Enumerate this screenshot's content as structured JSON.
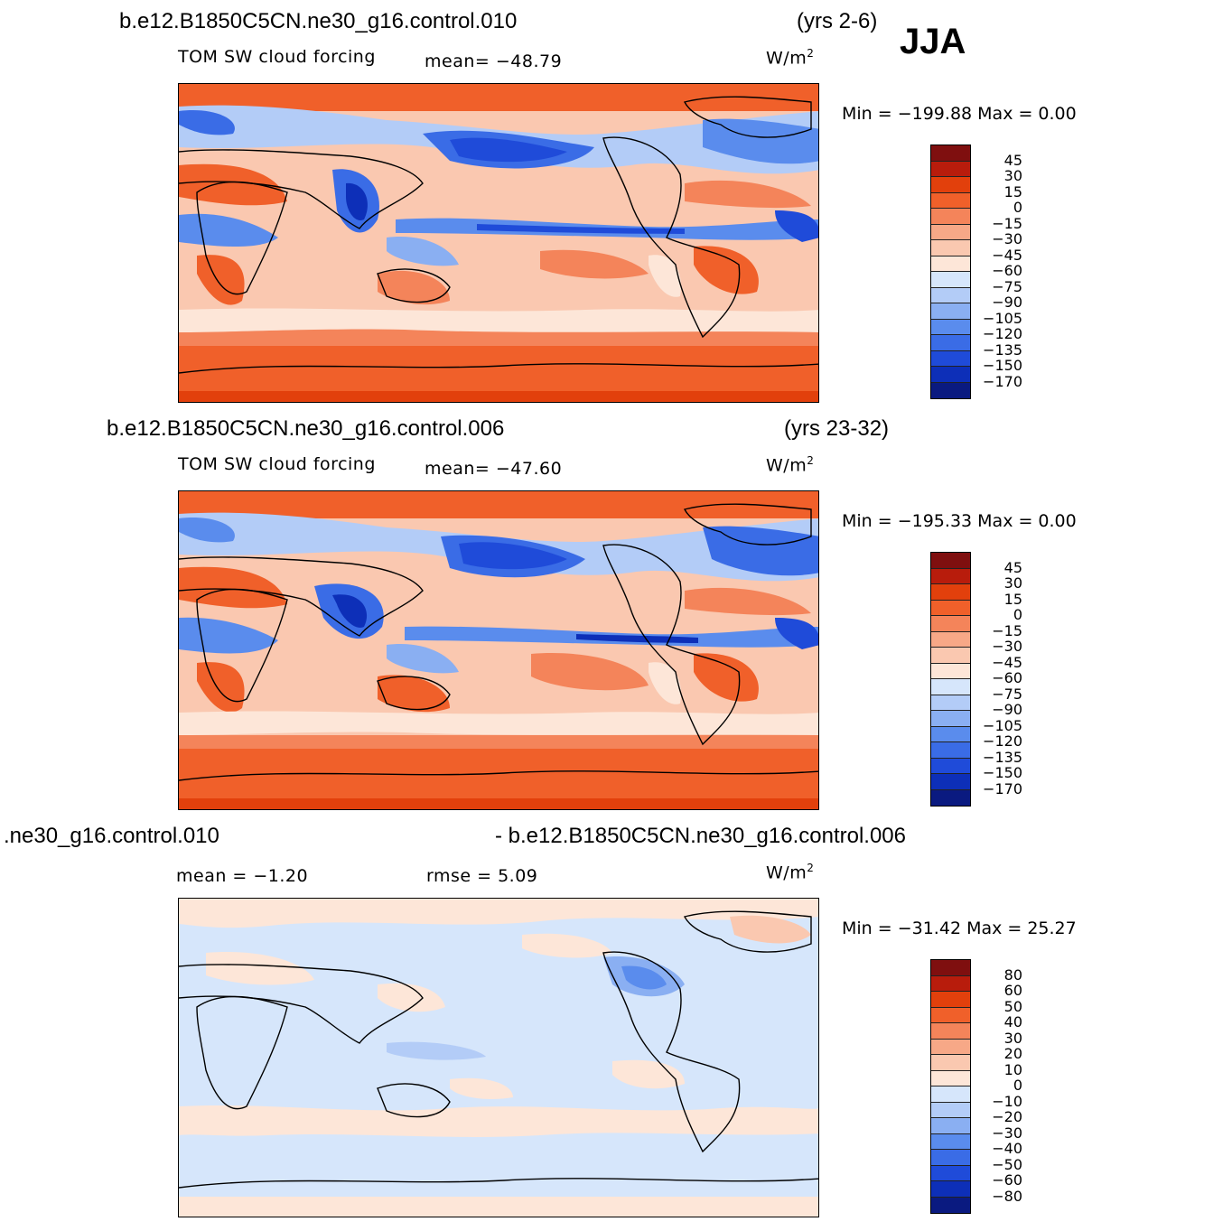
{
  "season": "JJA",
  "units_main": "W/m",
  "units_sup": "2",
  "panels": [
    {
      "case": "b.e12.B1850C5CN.ne30_g16.control.010",
      "years": "(yrs 2-6)",
      "variable": "TOM SW cloud forcing",
      "mean": "mean= −48.79",
      "minmax": "Min = −199.88 Max =     0.00",
      "levels": [
        "45",
        "30",
        "15",
        "0",
        "−15",
        "−30",
        "−45",
        "−60",
        "−75",
        "−90",
        "−105",
        "−120",
        "−135",
        "−150",
        "−170"
      ]
    },
    {
      "case": "b.e12.B1850C5CN.ne30_g16.control.006",
      "years": "(yrs 23-32)",
      "variable": "TOM SW cloud forcing",
      "mean": "mean= −47.60",
      "minmax": "Min = −195.33 Max =     0.00",
      "levels": [
        "45",
        "30",
        "15",
        "0",
        "−15",
        "−30",
        "−45",
        "−60",
        "−75",
        "−90",
        "−105",
        "−120",
        "−135",
        "−150",
        "−170"
      ]
    },
    {
      "case_left": ".ne30_g16.control.010",
      "case_right": "- b.e12.B1850C5CN.ne30_g16.control.006",
      "mean": "mean =  −1.20",
      "rmse": "rmse =   5.09",
      "minmax": "Min = −31.42 Max =   25.27",
      "levels": [
        "80",
        "60",
        "50",
        "40",
        "30",
        "20",
        "10",
        "0",
        "−10",
        "−20",
        "−30",
        "−40",
        "−50",
        "−60",
        "−80"
      ]
    }
  ],
  "colors": {
    "main_scale": [
      "#7f0f0f",
      "#b81c0c",
      "#e2400c",
      "#f0602a",
      "#f4845a",
      "#f7a887",
      "#fac8b0",
      "#fde6d8",
      "#d6e6fb",
      "#b3ccf7",
      "#8aaff2",
      "#5a8ced",
      "#3a6ce6",
      "#1f4bd9",
      "#0d2fb8",
      "#0a1a80"
    ],
    "diff_scale": [
      "#7f0f0f",
      "#b81c0c",
      "#e2400c",
      "#f0602a",
      "#f4845a",
      "#f7a887",
      "#fac8b0",
      "#fde6d8",
      "#d6e6fb",
      "#b3ccf7",
      "#8aaff2",
      "#5a8ced",
      "#3a6ce6",
      "#1f4bd9",
      "#0d2fb8",
      "#0a1a80"
    ]
  }
}
